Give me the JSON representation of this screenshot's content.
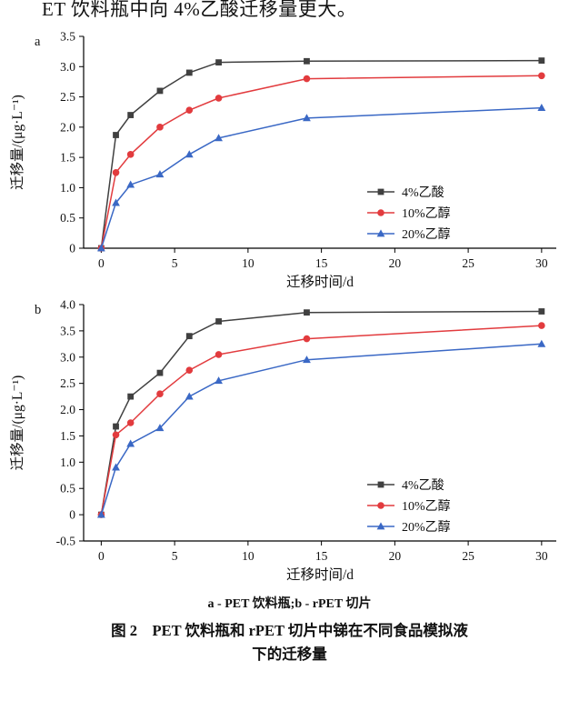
{
  "page": {
    "top_text": "ET 饮料瓶中向 4%乙酸迁移量更大。",
    "caption_sub": "a - PET 饮料瓶;b - rPET 切片",
    "caption_line1": "图 2　PET 饮料瓶和 rPET 切片中锑在不同食品模拟液",
    "caption_line2": "下的迁移量"
  },
  "colors": {
    "acetic_4": "#404040",
    "ethanol_10": "#e23b3e",
    "ethanol_20": "#3a68c5"
  },
  "chart_data": [
    {
      "id": "a",
      "type": "line",
      "panel_label": "a",
      "xlabel": "迁移时间/d",
      "ylabel": "迁移量/(μg·L⁻¹)",
      "xlim": [
        -1.2,
        31
      ],
      "ylim": [
        0,
        3.5
      ],
      "xticks": [
        0,
        5,
        10,
        15,
        20,
        25,
        30
      ],
      "yticks": [
        0,
        0.5,
        1.0,
        1.5,
        2.0,
        2.5,
        3.0,
        3.5
      ],
      "ytick_labels": [
        "0",
        "0.5",
        "1.0",
        "1.5",
        "2.0",
        "2.5",
        "3.0",
        "3.5"
      ],
      "x": [
        0,
        1,
        2,
        4,
        6,
        8,
        14,
        30
      ],
      "legend_position": "lower right",
      "grid": false,
      "series": [
        {
          "name": "4%乙酸",
          "marker": "square",
          "color": "#404040",
          "values": [
            0,
            1.87,
            2.2,
            2.6,
            2.9,
            3.07,
            3.09,
            3.1
          ]
        },
        {
          "name": "10%乙醇",
          "marker": "circle",
          "color": "#e23b3e",
          "values": [
            0,
            1.25,
            1.55,
            2.0,
            2.28,
            2.48,
            2.8,
            2.85
          ]
        },
        {
          "name": "20%乙醇",
          "marker": "triangle",
          "color": "#3a68c5",
          "values": [
            0,
            0.75,
            1.05,
            1.22,
            1.55,
            1.82,
            2.15,
            2.32
          ]
        }
      ]
    },
    {
      "id": "b",
      "type": "line",
      "panel_label": "b",
      "xlabel": "迁移时间/d",
      "ylabel": "迁移量/(μg·L⁻¹)",
      "xlim": [
        -1.2,
        31
      ],
      "ylim": [
        -0.5,
        4.0
      ],
      "xticks": [
        0,
        5,
        10,
        15,
        20,
        25,
        30
      ],
      "yticks": [
        -0.5,
        0,
        0.5,
        1.0,
        1.5,
        2.0,
        2.5,
        3.0,
        3.5,
        4.0
      ],
      "ytick_labels": [
        "-0.5",
        "0",
        "0.5",
        "1.0",
        "1.5",
        "2.0",
        "2.5",
        "3.0",
        "3.5",
        "4.0"
      ],
      "x": [
        0,
        1,
        2,
        4,
        6,
        8,
        14,
        30
      ],
      "legend_position": "lower right",
      "grid": false,
      "series": [
        {
          "name": "4%乙酸",
          "marker": "square",
          "color": "#404040",
          "values": [
            0,
            1.68,
            2.25,
            2.7,
            3.4,
            3.68,
            3.85,
            3.87
          ]
        },
        {
          "name": "10%乙醇",
          "marker": "circle",
          "color": "#e23b3e",
          "values": [
            0,
            1.52,
            1.75,
            2.3,
            2.75,
            3.05,
            3.35,
            3.6
          ]
        },
        {
          "name": "20%乙醇",
          "marker": "triangle",
          "color": "#3a68c5",
          "values": [
            0,
            0.9,
            1.35,
            1.65,
            2.25,
            2.55,
            2.95,
            3.25
          ]
        }
      ]
    }
  ]
}
